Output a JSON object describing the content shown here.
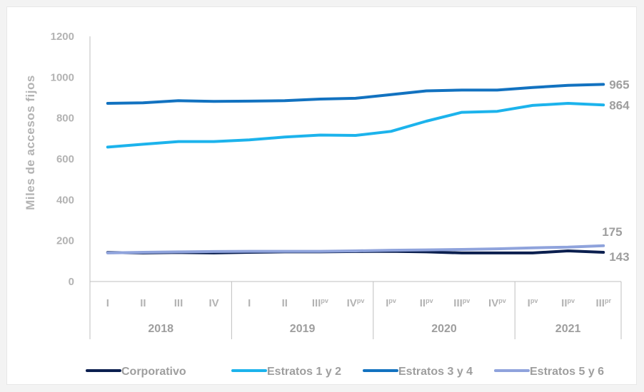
{
  "chart_data": {
    "type": "line",
    "ylabel": "Miles de accesos fijos",
    "xlabel": "",
    "ylim": [
      0,
      1200
    ],
    "yticks": [
      0,
      200,
      400,
      600,
      800,
      1000,
      1200
    ],
    "grid": false,
    "legend_position": "bottom",
    "categories": [
      {
        "label": "I",
        "sup": ""
      },
      {
        "label": "II",
        "sup": ""
      },
      {
        "label": "III",
        "sup": ""
      },
      {
        "label": "IV",
        "sup": ""
      },
      {
        "label": "I",
        "sup": ""
      },
      {
        "label": "II",
        "sup": ""
      },
      {
        "label": "III",
        "sup": "pv"
      },
      {
        "label": "IV",
        "sup": "pv"
      },
      {
        "label": "I",
        "sup": "pv"
      },
      {
        "label": "II",
        "sup": "pv"
      },
      {
        "label": "III",
        "sup": "pv"
      },
      {
        "label": "IV",
        "sup": "pv"
      },
      {
        "label": "I",
        "sup": "pv"
      },
      {
        "label": "II",
        "sup": "pv"
      },
      {
        "label": "III",
        "sup": "pr"
      }
    ],
    "groups": [
      {
        "label": "2018",
        "start": 0,
        "end": 3
      },
      {
        "label": "2019",
        "start": 4,
        "end": 7
      },
      {
        "label": "2020",
        "start": 8,
        "end": 11
      },
      {
        "label": "2021",
        "start": 12,
        "end": 14
      }
    ],
    "series": [
      {
        "name": "Corporativo",
        "color": "#0b1f4f",
        "end_label": "143",
        "values": [
          142,
          140,
          142,
          140,
          143,
          145,
          145,
          147,
          148,
          145,
          140,
          140,
          140,
          150,
          143
        ]
      },
      {
        "name": "Estratos 1 y 2",
        "color": "#1cb3ec",
        "end_label": "864",
        "values": [
          658,
          672,
          685,
          685,
          693,
          707,
          717,
          715,
          735,
          785,
          828,
          833,
          862,
          872,
          864
        ]
      },
      {
        "name": "Estratos 3 y 4",
        "color": "#1272c0",
        "end_label": "965",
        "values": [
          872,
          875,
          885,
          882,
          883,
          885,
          893,
          897,
          915,
          933,
          937,
          937,
          950,
          960,
          965
        ]
      },
      {
        "name": "Estratos 5 y 6",
        "color": "#8fa3dc",
        "end_label": "175",
        "values": [
          140,
          143,
          145,
          147,
          148,
          148,
          148,
          150,
          153,
          155,
          157,
          160,
          165,
          168,
          175
        ]
      }
    ]
  }
}
